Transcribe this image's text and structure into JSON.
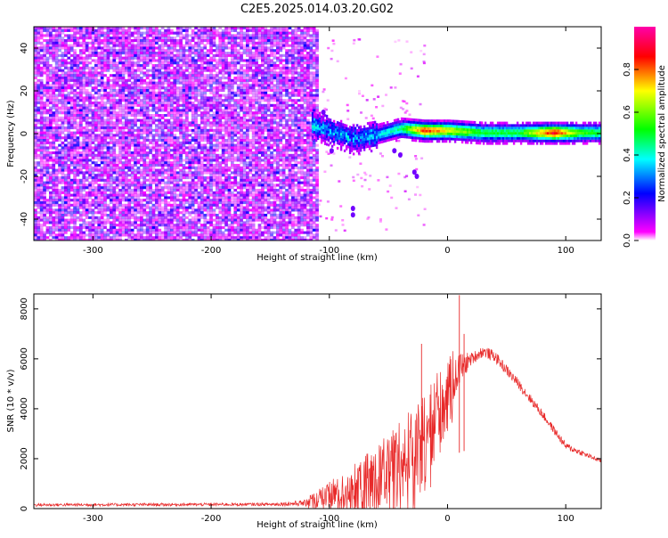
{
  "title": "C2E5.2025.014.03.20.G02",
  "chart_data": [
    {
      "type": "heatmap",
      "name": "spectrogram",
      "xlabel": "Height of straight line (km)",
      "ylabel": "Frequency (Hz)",
      "xlim": [
        -350,
        130
      ],
      "ylim": [
        -50,
        50
      ],
      "xticks": [
        -300,
        -200,
        -100,
        0,
        100
      ],
      "xtick_labels": [
        "-300",
        "-200",
        "-100",
        "0",
        "100"
      ],
      "yticks": [
        -40,
        -20,
        0,
        20,
        40
      ],
      "ytick_labels": [
        "-40",
        "-20",
        "0",
        "20",
        "40"
      ],
      "colorbar": {
        "label": "Normalized spectral amplitude",
        "range": [
          0,
          1
        ],
        "ticks": [
          0.0,
          0.2,
          0.4,
          0.6,
          0.8
        ],
        "tick_labels": [
          "0.0",
          "0.2",
          "0.4",
          "0.6",
          "0.8"
        ],
        "colors": [
          "#ffffff",
          "#ff00ff",
          "#0000ff",
          "#00ffff",
          "#00ff00",
          "#ffff00",
          "#ff0000"
        ]
      },
      "features": {
        "noise_region_x": [
          -350,
          -110
        ],
        "signal_start_x": -115,
        "signal_center_freq": 0,
        "signal_track": [
          {
            "x": -115,
            "f": 5,
            "amp": 0.35
          },
          {
            "x": -100,
            "f": 2,
            "amp": 0.3
          },
          {
            "x": -80,
            "f": -2,
            "amp": 0.3
          },
          {
            "x": -60,
            "f": 0,
            "amp": 0.35
          },
          {
            "x": -40,
            "f": 3,
            "amp": 0.45
          },
          {
            "x": -20,
            "f": 2,
            "amp": 0.85
          },
          {
            "x": 0,
            "f": 2,
            "amp": 0.7
          },
          {
            "x": 30,
            "f": 1,
            "amp": 0.5
          },
          {
            "x": 60,
            "f": 1,
            "amp": 0.5
          },
          {
            "x": 90,
            "f": 1,
            "amp": 0.9
          },
          {
            "x": 110,
            "f": 1,
            "amp": 0.55
          },
          {
            "x": 130,
            "f": 1,
            "amp": 0.5
          }
        ]
      }
    },
    {
      "type": "line",
      "name": "snr",
      "xlabel": "Height of straight line (km)",
      "ylabel": "SNR (10 * v/v)",
      "xlim": [
        -350,
        130
      ],
      "ylim": [
        0,
        8600
      ],
      "xticks": [
        -300,
        -200,
        -100,
        0,
        100
      ],
      "xtick_labels": [
        "-300",
        "-200",
        "-100",
        "0",
        "100"
      ],
      "yticks": [
        0,
        2000,
        4000,
        6000,
        8000
      ],
      "ytick_labels": [
        "0",
        "2000",
        "4000",
        "6000",
        "8000"
      ],
      "color": "#e82a2a",
      "envelope": {
        "x": [
          -350,
          -150,
          -120,
          -100,
          -80,
          -60,
          -40,
          -20,
          0,
          10,
          20,
          30,
          40,
          60,
          80,
          100,
          130
        ],
        "base": [
          150,
          170,
          220,
          500,
          800,
          1200,
          1800,
          2600,
          4500,
          5600,
          6000,
          6300,
          6100,
          5000,
          3800,
          2500,
          1900
        ],
        "spread": [
          120,
          120,
          250,
          600,
          1000,
          1400,
          1900,
          2400,
          1500,
          1400,
          500,
          450,
          450,
          400,
          350,
          300,
          150
        ]
      },
      "peaks": [
        {
          "x": -22,
          "y": 6600
        },
        {
          "x": 10,
          "y": 8550
        },
        {
          "x": 14,
          "y": 7000
        }
      ]
    }
  ]
}
